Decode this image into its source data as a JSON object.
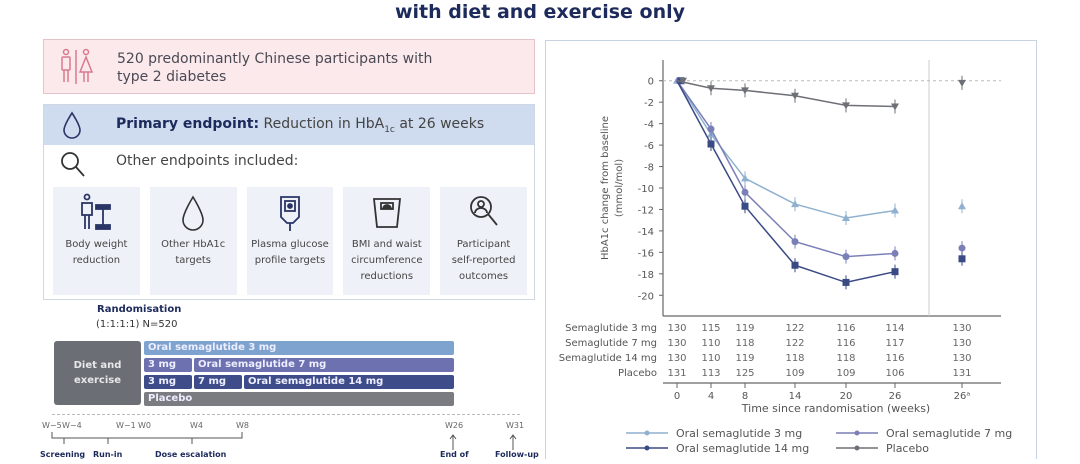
{
  "title": "with diet and exercise only",
  "population": {
    "icon": "people-icon",
    "text_line1": "520 predominantly Chinese participants with",
    "text_line2": "type 2 diabetes"
  },
  "primary": {
    "icon": "drop-icon",
    "label": "Primary endpoint:",
    "text": "Reduction in HbA",
    "sub": "1c",
    "tail": " at 26 weeks"
  },
  "other": {
    "icon": "magnifier-icon",
    "label": "Other endpoints included:"
  },
  "endpoints": [
    {
      "icon": "weight-icon",
      "l1": "Body weight",
      "l2": "reduction",
      "l3": ""
    },
    {
      "icon": "drop-icon",
      "l1": "Other HbA1c",
      "l2": "targets",
      "l3": ""
    },
    {
      "icon": "glucose-meter-icon",
      "l1": "Plasma glucose",
      "l2": "profile targets",
      "l3": ""
    },
    {
      "icon": "scale-icon",
      "l1": "BMI and waist",
      "l2": "circumference",
      "l3": "reductions"
    },
    {
      "icon": "person-search-icon",
      "l1": "Participant",
      "l2": "self-reported",
      "l3": "outcomes"
    }
  ],
  "timeline": {
    "randomisation": "Randomisation",
    "ratio": "(1:1:1:1) N=520",
    "diet": "Diet and exercise",
    "bars": [
      "Oral semaglutide 3 mg",
      "3 mg",
      "Oral semaglutide 7 mg",
      "3 mg",
      "7 mg",
      "Oral semaglutide 14 mg",
      "Placebo"
    ],
    "weeks": [
      "W−5",
      "W−4",
      "W−1",
      "W0",
      "W4",
      "W8",
      "W26",
      "W31"
    ],
    "phases": [
      "Screening",
      "Run-in",
      "Dose escalation",
      "End of",
      "Follow-up"
    ]
  },
  "chart_data": {
    "type": "line",
    "title": "",
    "ylabel": "HbA1c change from baseline (mmol/mol)",
    "xlabel": "Time since randomisation (weeks)",
    "x": [
      "0",
      "4",
      "8",
      "14",
      "20",
      "26",
      "26ᵃ"
    ],
    "ylim": [
      -21,
      1
    ],
    "yticks": [
      0,
      -2,
      -4,
      -6,
      -8,
      -10,
      -12,
      -14,
      -16,
      -18,
      -20
    ],
    "series": [
      {
        "name": "Oral semaglutide 3 mg",
        "color": "#8fb1cf",
        "marker": "triangle",
        "values": [
          0,
          -5.0,
          -9.1,
          -11.5,
          -12.8,
          -12.1,
          -11.7
        ]
      },
      {
        "name": "Oral semaglutide 7 mg",
        "color": "#7b7fb8",
        "marker": "circle",
        "values": [
          0,
          -4.5,
          -10.4,
          -15.0,
          -16.4,
          -16.1,
          -15.6
        ]
      },
      {
        "name": "Oral semaglutide 14 mg",
        "color": "#3a4a85",
        "marker": "square",
        "values": [
          0,
          -5.9,
          -11.7,
          -17.2,
          -18.8,
          -17.8,
          -16.6
        ]
      },
      {
        "name": "Placebo",
        "color": "#6e7077",
        "marker": "triangle-down",
        "values": [
          0,
          -0.7,
          -0.9,
          -1.4,
          -2.3,
          -2.4,
          -0.2
        ]
      }
    ],
    "at_risk": {
      "rows": [
        {
          "label": "Semaglutide 3 mg",
          "values": [
            130,
            115,
            119,
            122,
            116,
            114,
            130
          ]
        },
        {
          "label": "Semaglutide 7 mg",
          "values": [
            130,
            110,
            118,
            122,
            116,
            117,
            130
          ]
        },
        {
          "label": "Semaglutide 14 mg",
          "values": [
            130,
            110,
            119,
            118,
            118,
            116,
            130
          ]
        },
        {
          "label": "Placebo",
          "values": [
            131,
            113,
            125,
            109,
            109,
            106,
            131
          ]
        }
      ]
    },
    "legend": [
      "Oral semaglutide 3 mg",
      "Oral semaglutide 7 mg",
      "Oral semaglutide 14 mg",
      "Placebo"
    ],
    "legend_position": "bottom"
  }
}
